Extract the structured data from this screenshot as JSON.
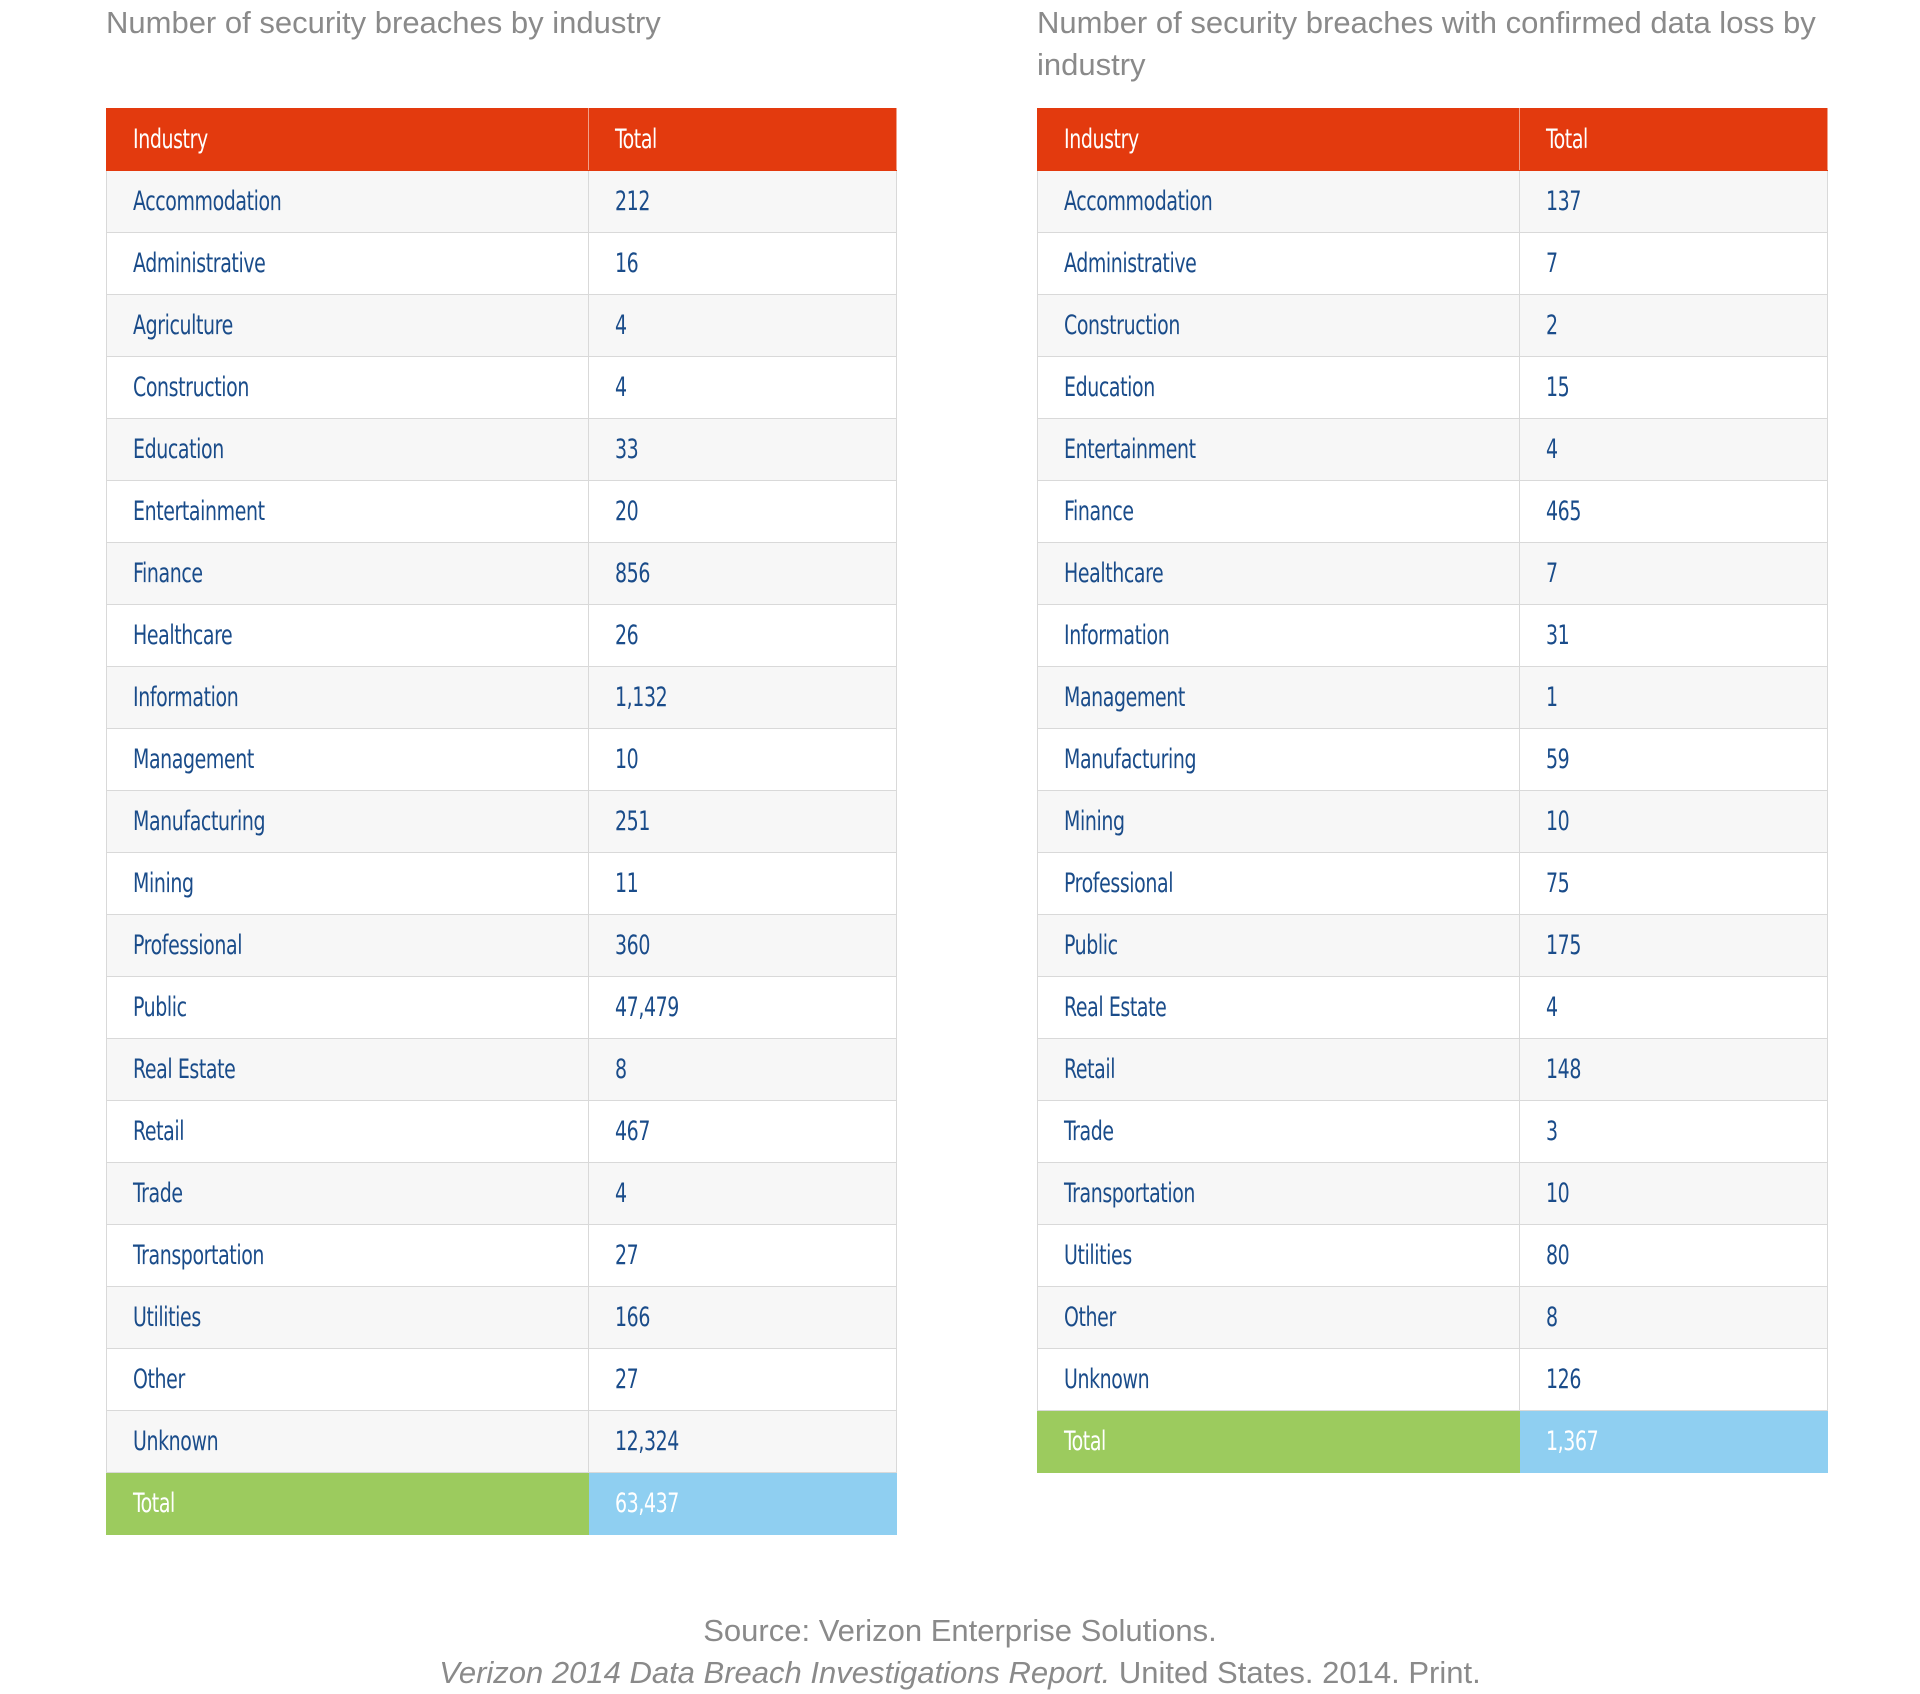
{
  "source": {
    "line1": "Source: Verizon Enterprise Solutions.",
    "line2_italic": "Verizon 2014 Data Breach Investigations Report.",
    "line2_rest": " United States. 2014. Print."
  },
  "colors": {
    "header": "#e33a0e",
    "total_label": "#9ccb5e",
    "total_value": "#8fcff1",
    "text": "#1a4c8a",
    "title": "#8a8a8a"
  },
  "chart_data": [
    {
      "type": "table",
      "title": "Number of security breaches by industry",
      "columns": [
        "Industry",
        "Total"
      ],
      "rows": [
        {
          "label": "Accommodation",
          "value": "212"
        },
        {
          "label": "Administrative",
          "value": "16"
        },
        {
          "label": "Agriculture",
          "value": "4"
        },
        {
          "label": "Construction",
          "value": "4"
        },
        {
          "label": "Education",
          "value": "33"
        },
        {
          "label": "Entertainment",
          "value": "20"
        },
        {
          "label": "Finance",
          "value": "856"
        },
        {
          "label": "Healthcare",
          "value": "26"
        },
        {
          "label": "Information",
          "value": "1,132"
        },
        {
          "label": "Management",
          "value": "10"
        },
        {
          "label": "Manufacturing",
          "value": "251"
        },
        {
          "label": "Mining",
          "value": "11"
        },
        {
          "label": "Professional",
          "value": "360"
        },
        {
          "label": "Public",
          "value": "47,479"
        },
        {
          "label": "Real Estate",
          "value": "8"
        },
        {
          "label": "Retail",
          "value": "467"
        },
        {
          "label": "Trade",
          "value": "4"
        },
        {
          "label": "Transportation",
          "value": "27"
        },
        {
          "label": "Utilities",
          "value": "166"
        },
        {
          "label": "Other",
          "value": "27"
        },
        {
          "label": "Unknown",
          "value": "12,324"
        }
      ],
      "total": {
        "label": "Total",
        "value": "63,437"
      }
    },
    {
      "type": "table",
      "title": "Number of security breaches with confirmed data loss by industry",
      "columns": [
        "Industry",
        "Total"
      ],
      "rows": [
        {
          "label": "Accommodation",
          "value": "137"
        },
        {
          "label": "Administrative",
          "value": "7"
        },
        {
          "label": "Construction",
          "value": "2"
        },
        {
          "label": "Education",
          "value": "15"
        },
        {
          "label": "Entertainment",
          "value": "4"
        },
        {
          "label": "Finance",
          "value": "465"
        },
        {
          "label": "Healthcare",
          "value": "7"
        },
        {
          "label": "Information",
          "value": "31"
        },
        {
          "label": "Management",
          "value": "1"
        },
        {
          "label": "Manufacturing",
          "value": "59"
        },
        {
          "label": "Mining",
          "value": "10"
        },
        {
          "label": "Professional",
          "value": "75"
        },
        {
          "label": "Public",
          "value": "175"
        },
        {
          "label": "Real Estate",
          "value": "4"
        },
        {
          "label": "Retail",
          "value": "148"
        },
        {
          "label": "Trade",
          "value": "3"
        },
        {
          "label": "Transportation",
          "value": "10"
        },
        {
          "label": "Utilities",
          "value": "80"
        },
        {
          "label": "Other",
          "value": "8"
        },
        {
          "label": "Unknown",
          "value": "126"
        }
      ],
      "total": {
        "label": "Total",
        "value": "1,367"
      }
    }
  ]
}
